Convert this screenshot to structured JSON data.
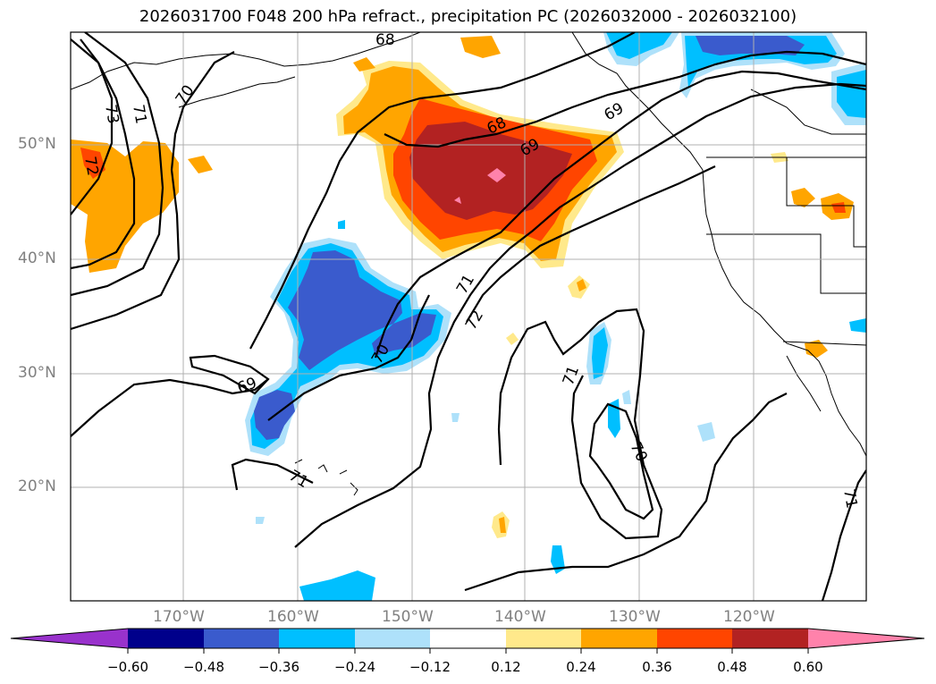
{
  "title": "2026031700 F048 200 hPa refract., precipitation PC (2026032000 - 2026032100)",
  "map": {
    "lon_labels": [
      "170°W",
      "160°W",
      "150°W",
      "140°W",
      "130°W",
      "120°W"
    ],
    "lat_labels": [
      "50°N",
      "40°N",
      "30°N",
      "20°N"
    ],
    "contour_labels": [
      "68",
      "68",
      "69",
      "69",
      "69",
      "70",
      "70",
      "70",
      "71",
      "71",
      "71",
      "71",
      "71",
      "72",
      "72",
      "73"
    ]
  },
  "colorbar": {
    "ticks": [
      "−0.60",
      "−0.48",
      "−0.36",
      "−0.24",
      "−0.12",
      "0.12",
      "0.24",
      "0.36",
      "0.48",
      "0.60"
    ],
    "colors": [
      "#9932cc",
      "#00008b",
      "#3a5bcd",
      "#00bfff",
      "#aee1fa",
      "#ffffff",
      "#ffe98b",
      "#ffa500",
      "#ff4500",
      "#b22222",
      "#ff82ab"
    ]
  }
}
